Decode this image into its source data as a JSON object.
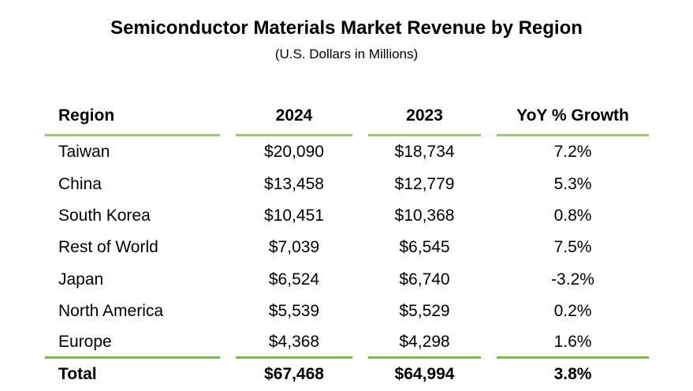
{
  "title": "Semiconductor Materials Market Revenue by Region",
  "subtitle": "(U.S. Dollars in Millions)",
  "colors": {
    "header_line": "#A6C183",
    "total_line": "#7CB84E",
    "text": "#000000",
    "bg": "#FFFFFF"
  },
  "chart_data": {
    "type": "table",
    "title": "Semiconductor Materials Market Revenue by Region",
    "subtitle": "(U.S. Dollars in Millions)",
    "units": "U.S. Dollars in Millions",
    "columns": [
      "Region",
      "2024",
      "2023",
      "YoY % Growth"
    ],
    "rows": [
      [
        "Taiwan",
        "$20,090",
        "$18,734",
        "7.2%"
      ],
      [
        "China",
        "$13,458",
        "$12,779",
        "5.3%"
      ],
      [
        "South Korea",
        "$10,451",
        "$10,368",
        "0.8%"
      ],
      [
        "Rest of World",
        "$7,039",
        "$6,545",
        "7.5%"
      ],
      [
        "Japan",
        "$6,524",
        "$6,740",
        "-3.2%"
      ],
      [
        "North America",
        "$5,539",
        "$5,529",
        "0.2%"
      ],
      [
        "Europe",
        "$4,368",
        "$4,298",
        "1.6%"
      ]
    ],
    "total_row": [
      "Total",
      "$67,468",
      "$64,994",
      "3.8%"
    ],
    "numeric": {
      "regions": [
        "Taiwan",
        "China",
        "South Korea",
        "Rest of World",
        "Japan",
        "North America",
        "Europe"
      ],
      "values_2024": [
        20090,
        13458,
        10451,
        7039,
        6524,
        5539,
        4368
      ],
      "values_2023": [
        18734,
        12779,
        10368,
        6545,
        6740,
        5529,
        4298
      ],
      "yoy_growth_pct": [
        7.2,
        5.3,
        0.8,
        7.5,
        -3.2,
        0.2,
        1.6
      ],
      "total_2024": 67468,
      "total_2023": 64994,
      "total_yoy_pct": 3.8
    }
  }
}
